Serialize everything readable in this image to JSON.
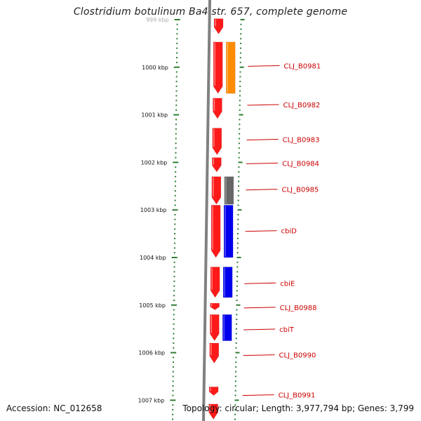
{
  "title": "Clostridium botulinum Ba4 str. 657, complete genome",
  "footer": {
    "accession": "Accession: NC_012658",
    "topology": "Topology: circular; Length: 3,977,794 bp; Genes: 3,799"
  },
  "ruler": {
    "ticks": [
      "999 kbp",
      "1000 kbp",
      "1001 kbp",
      "1002 kbp",
      "1003 kbp",
      "1004 kbp",
      "1005 kbp",
      "1006 kbp",
      "1007 kbp"
    ]
  },
  "genes": [
    {
      "label": "",
      "strand": "minus",
      "color": "#ff1a1a",
      "start_kbp": 998.98,
      "end_kbp": 999.3
    },
    {
      "label": "CLJ_B0981",
      "strand": "minus",
      "color": "#ff1a1a",
      "start_kbp": 999.47,
      "end_kbp": 1000.55
    },
    {
      "label": "CLJ_B0981",
      "strand": "minus",
      "color": "#ff8c00",
      "start_kbp": 999.47,
      "end_kbp": 1000.55,
      "track": "outer"
    },
    {
      "label": "CLJ_B0982",
      "strand": "minus",
      "color": "#ff1a1a",
      "start_kbp": 1000.65,
      "end_kbp": 1001.08
    },
    {
      "label": "CLJ_B0983",
      "strand": "minus",
      "color": "#ff1a1a",
      "start_kbp": 1001.28,
      "end_kbp": 1001.84
    },
    {
      "label": "CLJ_B0984",
      "strand": "minus",
      "color": "#ff1a1a",
      "start_kbp": 1001.9,
      "end_kbp": 1002.2
    },
    {
      "label": "CLJ_B0985",
      "strand": "minus",
      "color": "#ff1a1a",
      "start_kbp": 1002.3,
      "end_kbp": 1002.88
    },
    {
      "label": "CLJ_B0985",
      "strand": "minus",
      "color": "#666666",
      "start_kbp": 1002.3,
      "end_kbp": 1002.88,
      "track": "outer"
    },
    {
      "label": "cbiD",
      "strand": "minus",
      "color": "#ff1a1a",
      "start_kbp": 1002.9,
      "end_kbp": 1004.0
    },
    {
      "label": "cbiD",
      "strand": "minus",
      "color": "#0000ee",
      "start_kbp": 1002.9,
      "end_kbp": 1004.0,
      "track": "outer"
    },
    {
      "label": "cbiE",
      "strand": "minus",
      "color": "#ff1a1a",
      "start_kbp": 1004.2,
      "end_kbp": 1004.84
    },
    {
      "label": "cbiE",
      "strand": "minus",
      "color": "#0000ee",
      "start_kbp": 1004.2,
      "end_kbp": 1004.84,
      "track": "outer"
    },
    {
      "label": "CLJ_B0988",
      "strand": "minus",
      "color": "#ff1a1a",
      "start_kbp": 1004.96,
      "end_kbp": 1005.1
    },
    {
      "label": "cbiT",
      "strand": "minus",
      "color": "#ff1a1a",
      "start_kbp": 1005.2,
      "end_kbp": 1005.75
    },
    {
      "label": "cbiT",
      "strand": "minus",
      "color": "#0000ee",
      "start_kbp": 1005.2,
      "end_kbp": 1005.75,
      "track": "outer"
    },
    {
      "label": "CLJ_B0990",
      "strand": "minus",
      "color": "#ff1a1a",
      "start_kbp": 1005.8,
      "end_kbp": 1006.22
    },
    {
      "label": "CLJ_B0991",
      "strand": "minus",
      "color": "#ff1a1a",
      "start_kbp": 1006.72,
      "end_kbp": 1006.9
    },
    {
      "label": "",
      "strand": "minus",
      "color": "#ff1a1a",
      "start_kbp": 1007.08,
      "end_kbp": 1007.4
    }
  ],
  "gene_labels": [
    {
      "text": "CLJ_B0981",
      "kbp": 999.98
    },
    {
      "text": "CLJ_B0982",
      "kbp": 1000.8
    },
    {
      "text": "CLJ_B0983",
      "kbp": 1001.53
    },
    {
      "text": "CLJ_B0984",
      "kbp": 1002.03
    },
    {
      "text": "CLJ_B0985",
      "kbp": 1002.58
    },
    {
      "text": "cbiD",
      "kbp": 1003.45
    },
    {
      "text": "cbiE",
      "kbp": 1004.55
    },
    {
      "text": "CLJ_B0988",
      "kbp": 1005.06
    },
    {
      "text": "cbiT",
      "kbp": 1005.52
    },
    {
      "text": "CLJ_B0990",
      "kbp": 1006.06
    },
    {
      "text": "CLJ_B0991",
      "kbp": 1006.9
    }
  ],
  "colors": {
    "tick": "#2e7d32",
    "backbone": "#808080",
    "label": "#cc0000",
    "leader": "#cc0000"
  }
}
